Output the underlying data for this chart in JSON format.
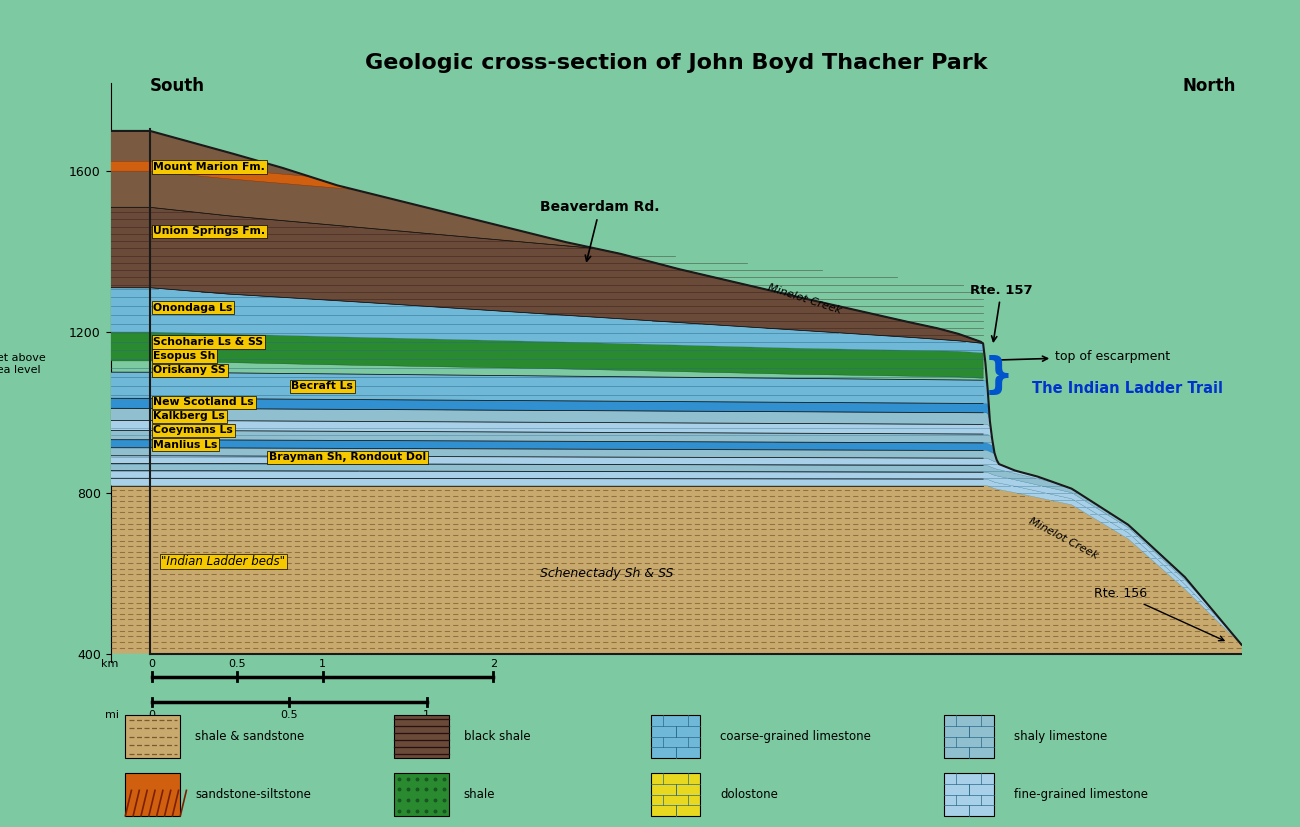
{
  "title": "Geologic cross-section of John Boyd Thacher Park",
  "bg": "#7dc9a1",
  "south": "South",
  "north": "North",
  "yticks": [
    400,
    800,
    1200,
    1600
  ],
  "colors": {
    "sandy": "#c8a96e",
    "sandy_line": "#7a5a2a",
    "mount_marion": "#7a5a40",
    "union_springs": "#6a4a38",
    "orange_stripe": "#d06010",
    "coarse_ls": "#70b8d8",
    "shaly_ls": "#90c0d0",
    "fine_ls": "#a8d0e8",
    "green_shale": "#2a8a30",
    "oriskany_blue": "#3090d0",
    "becraft_blue": "#38a8e0",
    "dolostone": "#e8d820",
    "outline": "#1a1a1a"
  },
  "labels": [
    [
      "Mount Marion Fm.",
      0.38,
      1610
    ],
    [
      "Union Springs Fm.",
      0.38,
      1450
    ],
    [
      "Onondaga Ls",
      0.38,
      1260
    ],
    [
      "Schoharie Ls & SS",
      0.38,
      1175
    ],
    [
      "Esopus Sh",
      0.38,
      1140
    ],
    [
      "Oriskany SS",
      0.38,
      1105
    ],
    [
      "Becraft Ls",
      1.6,
      1065
    ],
    [
      "New Scotland Ls",
      0.38,
      1025
    ],
    [
      "Kalkberg Ls",
      0.38,
      990
    ],
    [
      "Coeymans Ls",
      0.38,
      955
    ],
    [
      "Manlius Ls",
      0.38,
      920
    ],
    [
      "Brayman Sh, Rondout Dol",
      1.4,
      888
    ]
  ]
}
